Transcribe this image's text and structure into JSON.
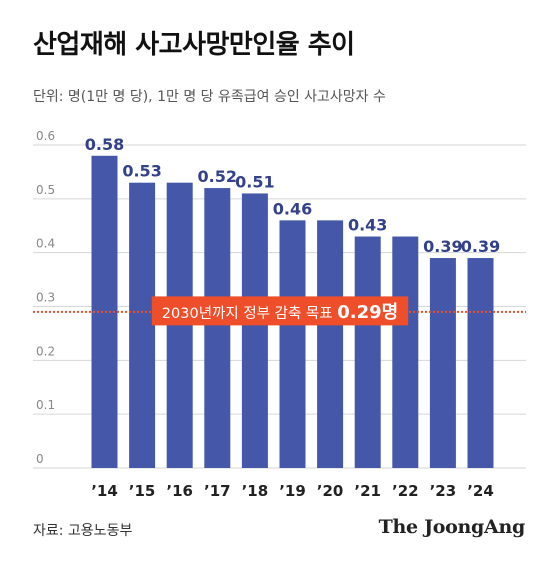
{
  "chart_data": {
    "type": "bar",
    "title": "산업재해 사고사망만인율 추이",
    "subtitle": "단위: 명(1만 명 당), 1만 명 당 유족급여 승인 사고사망자 수",
    "categories": [
      "’14",
      "’15",
      "’16",
      "’17",
      "’18",
      "’19",
      "’20",
      "’21",
      "’22",
      "’23",
      "’24"
    ],
    "values": [
      0.58,
      0.53,
      0.53,
      0.52,
      0.51,
      0.46,
      0.46,
      0.43,
      0.43,
      0.39,
      0.39
    ],
    "data_labels": [
      "0.58",
      "0.53",
      "",
      "0.52",
      "0.51",
      "0.46",
      "",
      "0.43",
      "",
      "0.39",
      "0.39"
    ],
    "y_ticks": [
      "0",
      "0.1",
      "0.2",
      "0.3",
      "0.4",
      "0.5",
      "0.6"
    ],
    "ylim": [
      0,
      0.6
    ],
    "grid": true,
    "reference_line": {
      "value": 0.29,
      "label_text": "2030년까지 정부 감축 목표 ",
      "label_value": "0.29명"
    }
  },
  "source": "자료: 고용노동부",
  "logo": "The JoongAng",
  "colors": {
    "bar": "#4457a8",
    "value_label": "#33418a",
    "target": "#ee4e2a",
    "grid": "#d6d6d6",
    "axis_text": "#888888"
  }
}
